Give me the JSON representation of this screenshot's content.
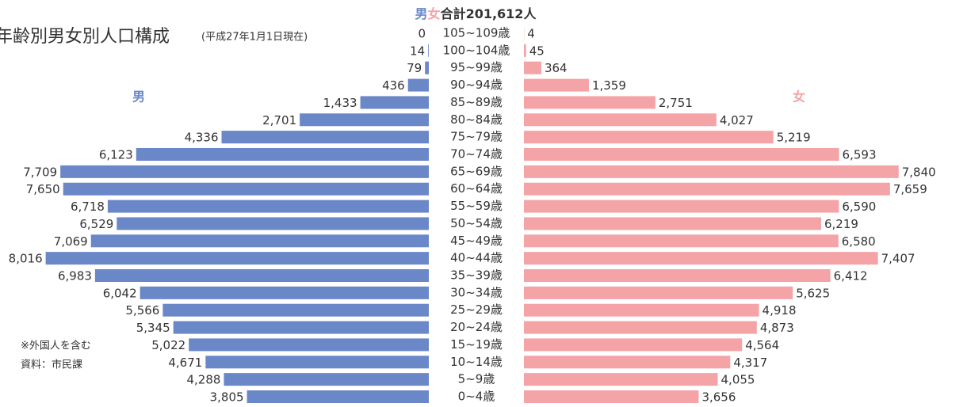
{
  "chart_data": {
    "type": "pyramid",
    "title": "年齢別男女別人口構成",
    "subtitle": "(平成27年1月1日現在)",
    "total": "合計201,612人",
    "notes": [
      "※外国人を含む",
      "資料：市民課"
    ],
    "categories": [
      "105~109歳",
      "100~104歳",
      "95~99歳",
      "90~94歳",
      "85~89歳",
      "80~84歳",
      "75~79歳",
      "70~74歳",
      "65~69歳",
      "60~64歳",
      "55~59歳",
      "50~54歳",
      "45~49歳",
      "40~44歳",
      "35~39歳",
      "30~34歳",
      "25~29歳",
      "20~24歳",
      "15~19歳",
      "10~14歳",
      "5~9歳",
      "0~4歳"
    ],
    "series": [
      {
        "name": "男",
        "color": "#6a87c8",
        "values": [
          0,
          14,
          79,
          436,
          1433,
          2701,
          4336,
          6123,
          7709,
          7650,
          6718,
          6529,
          7069,
          8016,
          6983,
          6042,
          5566,
          5345,
          5022,
          4671,
          4288,
          3805
        ],
        "value_labels": [
          "0",
          "14",
          "79",
          "436",
          "1,433",
          "2,701",
          "4,336",
          "6,123",
          "7,709",
          "7,650",
          "6,718",
          "6,529",
          "7,069",
          "8,016",
          "6,983",
          "6,042",
          "5,566",
          "5,345",
          "5,022",
          "4,671",
          "4,288",
          "3,805"
        ]
      },
      {
        "name": "女",
        "color": "#f4a3a6",
        "values": [
          4,
          45,
          364,
          1359,
          2751,
          4027,
          5219,
          6593,
          7840,
          7659,
          6590,
          6219,
          6580,
          7407,
          6412,
          5625,
          4918,
          4873,
          4564,
          4317,
          4055,
          3656
        ],
        "value_labels": [
          "4",
          "45",
          "364",
          "1,359",
          "2,751",
          "4,027",
          "5,219",
          "6,593",
          "7,840",
          "7,659",
          "6,590",
          "6,219",
          "6,580",
          "7,407",
          "6,412",
          "5,625",
          "4,918",
          "4,873",
          "4,564",
          "4,317",
          "4,055",
          "3,656"
        ]
      }
    ]
  }
}
